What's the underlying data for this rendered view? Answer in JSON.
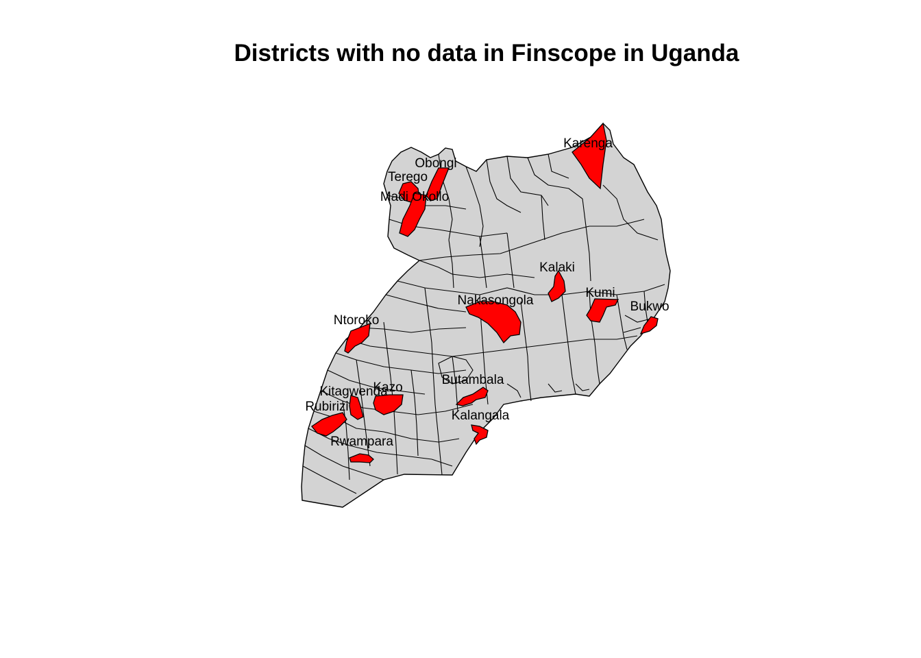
{
  "title": "Districts with no data in Finscope in Uganda",
  "colors": {
    "background": "#ffffff",
    "district_fill": "#d3d3d3",
    "no_data_fill": "#ff0000",
    "border": "#000000"
  },
  "labels": {
    "karenga": "Karenga",
    "obongi": "Obongi",
    "terego": "Terego",
    "madi_okollo": "Madi Okollo",
    "kalaki": "Kalaki",
    "kumi": "Kumi",
    "bukwo": "Bukwo",
    "nakasongola": "Nakasongola",
    "ntoroko": "Ntoroko",
    "butambala": "Butambala",
    "kitagwenda": "Kitagwenda",
    "kazo": "Kazo",
    "rubirizi": "Rubirizi",
    "kalangala": "Kalangala",
    "rwampara": "Rwampara"
  }
}
